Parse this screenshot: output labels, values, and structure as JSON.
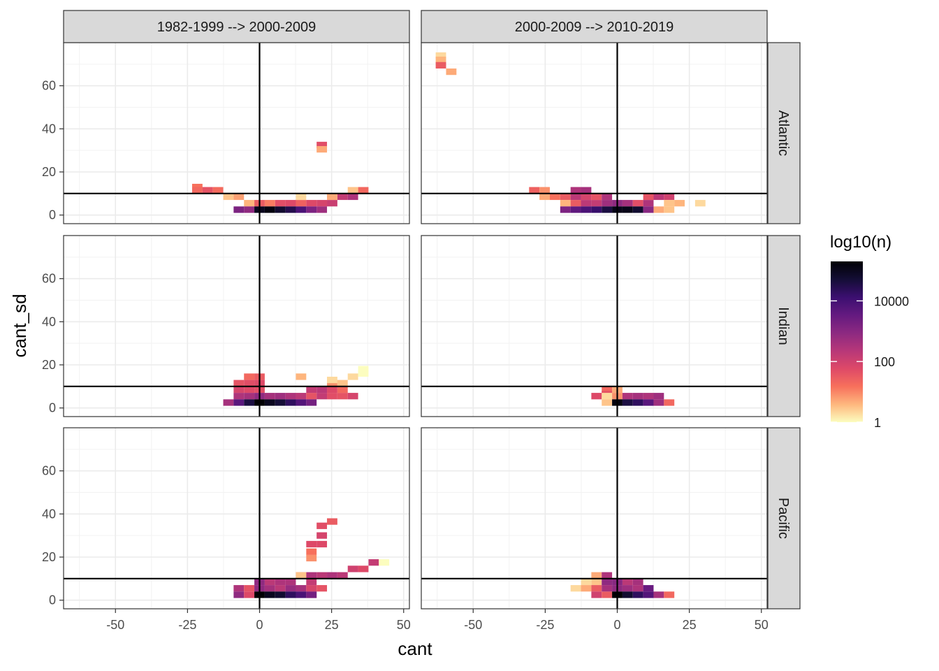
{
  "chart_data": {
    "type": "heatmap",
    "xlabel": "cant",
    "ylabel": "cant_sd",
    "xlim": [
      -68,
      52
    ],
    "ylim": [
      -4,
      80
    ],
    "x_ticks": [
      -50,
      -25,
      0,
      25,
      50
    ],
    "x_tick_labels": [
      "-50",
      "-25",
      "0",
      "25",
      "50"
    ],
    "y_ticks": [
      0,
      20,
      40,
      60
    ],
    "y_tick_labels": [
      "0",
      "20",
      "40",
      "60"
    ],
    "reference_lines": {
      "vline_x": 0,
      "hline_y": 10
    },
    "bin_size": {
      "x": 3.6,
      "y": 3.0
    },
    "grid": true,
    "column_facets": [
      "1982-1999 --> 2000-2009",
      "2000-2009 --> 2010-2019"
    ],
    "row_facets": [
      "Atlantic",
      "Indian",
      "Pacific"
    ],
    "legend": {
      "title": "log10(n)",
      "position": "right",
      "scale": "log10",
      "range": [
        1,
        200000
      ],
      "breaks": [
        1,
        100,
        10000
      ],
      "break_labels": [
        "1",
        "100",
        "10000"
      ],
      "colors": [
        "#fcfdbf",
        "#feb77e",
        "#f7705c",
        "#de4968",
        "#b73779",
        "#8c2981",
        "#641a80",
        "#3b0f70",
        "#140e36",
        "#000004"
      ]
    },
    "panels": [
      {
        "row": "Atlantic",
        "col": "1982-1999 --> 2000-2009",
        "cells": [
          [
            -21.6,
            13,
            15
          ],
          [
            -21.6,
            11.5,
            20
          ],
          [
            -18,
            11.5,
            40
          ],
          [
            -14.4,
            11.5,
            18
          ],
          [
            -10.8,
            8.5,
            3
          ],
          [
            -7.2,
            8.5,
            6
          ],
          [
            -3.6,
            5.5,
            4
          ],
          [
            0,
            5.5,
            30
          ],
          [
            3.6,
            5.5,
            12
          ],
          [
            7.2,
            5.5,
            50
          ],
          [
            10.8,
            5.5,
            60
          ],
          [
            14.4,
            5.5,
            25
          ],
          [
            18,
            5.5,
            60
          ],
          [
            21.6,
            5.5,
            80
          ],
          [
            25.2,
            5.5,
            120
          ],
          [
            28.8,
            8.5,
            150
          ],
          [
            32.4,
            8.5,
            300
          ],
          [
            36,
            11.5,
            20
          ],
          [
            32.4,
            11.5,
            3
          ],
          [
            25.2,
            8.5,
            5
          ],
          [
            14.4,
            8.5,
            2
          ],
          [
            -7.2,
            2.5,
            1500
          ],
          [
            -3.6,
            2.5,
            800
          ],
          [
            0,
            2.5,
            100000
          ],
          [
            3.6,
            2.5,
            150000
          ],
          [
            7.2,
            2.5,
            60000
          ],
          [
            10.8,
            2.5,
            30000
          ],
          [
            14.4,
            2.5,
            8000
          ],
          [
            18,
            2.5,
            1500
          ],
          [
            21.6,
            2.5,
            500
          ],
          [
            21.6,
            32.5,
            50
          ],
          [
            21.6,
            30.5,
            5
          ]
        ]
      },
      {
        "row": "Atlantic",
        "col": "2000-2009 --> 2010-2019",
        "cells": [
          [
            -61.2,
            74,
            2
          ],
          [
            -61.2,
            72,
            4
          ],
          [
            -61.2,
            69.5,
            30
          ],
          [
            -57.6,
            66.5,
            5
          ],
          [
            -28.8,
            11.5,
            25
          ],
          [
            -25.2,
            11.5,
            8
          ],
          [
            -25.2,
            8.5,
            5
          ],
          [
            -21.6,
            8.5,
            15
          ],
          [
            -18,
            8.5,
            30
          ],
          [
            -18,
            5.5,
            4
          ],
          [
            -14.4,
            11.5,
            300
          ],
          [
            -10.8,
            11.5,
            400
          ],
          [
            -14.4,
            8.5,
            200
          ],
          [
            -10.8,
            8.5,
            80
          ],
          [
            -7.2,
            8.5,
            40
          ],
          [
            -3.6,
            8.5,
            300
          ],
          [
            -14.4,
            5.5,
            30
          ],
          [
            -10.8,
            5.5,
            200
          ],
          [
            -7.2,
            5.5,
            150
          ],
          [
            -3.6,
            5.5,
            500
          ],
          [
            0,
            5.5,
            800
          ],
          [
            3.6,
            5.5,
            400
          ],
          [
            7.2,
            5.5,
            50
          ],
          [
            10.8,
            5.5,
            300
          ],
          [
            14.4,
            8.5,
            200
          ],
          [
            18,
            8.5,
            100
          ],
          [
            10.8,
            8.5,
            40
          ],
          [
            18,
            5.5,
            3
          ],
          [
            21.6,
            5.5,
            4
          ],
          [
            28.8,
            5.5,
            2
          ],
          [
            -18,
            2.5,
            1500
          ],
          [
            -14.4,
            2.5,
            4000
          ],
          [
            -10.8,
            2.5,
            8000
          ],
          [
            -7.2,
            2.5,
            15000
          ],
          [
            -3.6,
            2.5,
            40000
          ],
          [
            0,
            2.5,
            120000
          ],
          [
            3.6,
            2.5,
            120000
          ],
          [
            7.2,
            2.5,
            60000
          ],
          [
            10.8,
            2.5,
            1000
          ],
          [
            14.4,
            2.5,
            5
          ],
          [
            18,
            2.5,
            3
          ]
        ]
      },
      {
        "row": "Indian",
        "col": "1982-1999 --> 2000-2009",
        "cells": [
          [
            -3.6,
            14.5,
            20
          ],
          [
            0,
            14.5,
            30
          ],
          [
            -7.2,
            11.5,
            40
          ],
          [
            -3.6,
            11.5,
            50
          ],
          [
            0,
            11.5,
            60
          ],
          [
            -7.2,
            8.5,
            80
          ],
          [
            -3.6,
            8.5,
            60
          ],
          [
            0,
            8.5,
            50
          ],
          [
            -7.2,
            5.5,
            300
          ],
          [
            -3.6,
            5.5,
            400
          ],
          [
            0,
            5.5,
            800
          ],
          [
            3.6,
            5.5,
            400
          ],
          [
            7.2,
            5.5,
            500
          ],
          [
            10.8,
            5.5,
            300
          ],
          [
            14.4,
            5.5,
            200
          ],
          [
            18,
            5.5,
            40
          ],
          [
            21.6,
            5.5,
            150
          ],
          [
            25.2,
            5.5,
            50
          ],
          [
            28.8,
            5.5,
            40
          ],
          [
            32.4,
            5.5,
            80
          ],
          [
            18,
            8.5,
            150
          ],
          [
            21.6,
            8.5,
            200
          ],
          [
            25.2,
            8.5,
            60
          ],
          [
            28.8,
            8.5,
            20
          ],
          [
            25.2,
            11.5,
            8
          ],
          [
            28.8,
            11.5,
            3
          ],
          [
            32.4,
            14.5,
            2
          ],
          [
            36,
            16,
            1
          ],
          [
            36,
            18,
            1
          ],
          [
            14.4,
            14.5,
            4
          ],
          [
            25.2,
            13,
            2
          ],
          [
            -10.8,
            2.5,
            400
          ],
          [
            -7.2,
            2.5,
            5000
          ],
          [
            -3.6,
            2.5,
            40000
          ],
          [
            0,
            2.5,
            200000
          ],
          [
            3.6,
            2.5,
            100000
          ],
          [
            7.2,
            2.5,
            50000
          ],
          [
            10.8,
            2.5,
            20000
          ],
          [
            14.4,
            2.5,
            6000
          ],
          [
            18,
            2.5,
            2000
          ]
        ]
      },
      {
        "row": "Indian",
        "col": "2000-2009 --> 2010-2019",
        "cells": [
          [
            -3.6,
            8.5,
            20
          ],
          [
            0,
            8.5,
            5
          ],
          [
            -3.6,
            6.5,
            40
          ],
          [
            0,
            5.5,
            8
          ],
          [
            -7.2,
            5.5,
            60
          ],
          [
            -3.6,
            5.5,
            2
          ],
          [
            3.6,
            5.5,
            300
          ],
          [
            7.2,
            5.5,
            400
          ],
          [
            10.8,
            5.5,
            300
          ],
          [
            14.4,
            5.5,
            500
          ],
          [
            -3.6,
            2.5,
            3
          ],
          [
            0,
            2.5,
            150000
          ],
          [
            3.6,
            2.5,
            40000
          ],
          [
            7.2,
            2.5,
            20000
          ],
          [
            10.8,
            2.5,
            5000
          ],
          [
            14.4,
            2.5,
            500
          ],
          [
            18,
            2.5,
            20
          ]
        ]
      },
      {
        "row": "Pacific",
        "col": "1982-1999 --> 2000-2009",
        "cells": [
          [
            -7.2,
            5.5,
            300
          ],
          [
            -3.6,
            5.5,
            40
          ],
          [
            -7.2,
            2.5,
            800
          ],
          [
            -3.6,
            2.5,
            60
          ],
          [
            0,
            8.5,
            800
          ],
          [
            0,
            5.5,
            800
          ],
          [
            3.6,
            5.5,
            400
          ],
          [
            7.2,
            5.5,
            200
          ],
          [
            10.8,
            5.5,
            600
          ],
          [
            14.4,
            5.5,
            400
          ],
          [
            18,
            5.5,
            80
          ],
          [
            21.6,
            5.5,
            40
          ],
          [
            3.6,
            8.5,
            200
          ],
          [
            7.2,
            8.5,
            300
          ],
          [
            10.8,
            8.5,
            300
          ],
          [
            14.4,
            11.5,
            50
          ],
          [
            18,
            11.5,
            300
          ],
          [
            21.6,
            11.5,
            200
          ],
          [
            25.2,
            11.5,
            300
          ],
          [
            28.8,
            11.5,
            200
          ],
          [
            32.4,
            14.5,
            100
          ],
          [
            36,
            14.5,
            60
          ],
          [
            39.6,
            17.5,
            150
          ],
          [
            43.2,
            17.5,
            1
          ],
          [
            14.4,
            11.5,
            3
          ],
          [
            18,
            8.5,
            150
          ],
          [
            18,
            2.5,
            40
          ],
          [
            0,
            2.5,
            200000
          ],
          [
            3.6,
            2.5,
            100000
          ],
          [
            7.2,
            2.5,
            60000
          ],
          [
            10.8,
            2.5,
            20000
          ],
          [
            14.4,
            2.5,
            8000
          ],
          [
            18,
            2.5,
            2000
          ],
          [
            18,
            26,
            60
          ],
          [
            21.6,
            26,
            60
          ],
          [
            21.6,
            30,
            80
          ],
          [
            18,
            22.5,
            15
          ],
          [
            21.6,
            34.5,
            50
          ],
          [
            25.2,
            36.5,
            30
          ],
          [
            18,
            19.5,
            8
          ]
        ]
      },
      {
        "row": "Pacific",
        "col": "2000-2009 --> 2010-2019",
        "cells": [
          [
            -7.2,
            11.5,
            5
          ],
          [
            -3.6,
            11.5,
            300
          ],
          [
            -7.2,
            8.5,
            3
          ],
          [
            -10.8,
            8.5,
            2
          ],
          [
            -10.8,
            5.5,
            5
          ],
          [
            -7.2,
            5.5,
            30
          ],
          [
            -3.6,
            8.5,
            800
          ],
          [
            0,
            8.5,
            1000
          ],
          [
            3.6,
            8.5,
            200
          ],
          [
            7.2,
            8.5,
            400
          ],
          [
            -7.2,
            2.5,
            100
          ],
          [
            -3.6,
            2.5,
            30
          ],
          [
            -3.6,
            5.5,
            400
          ],
          [
            0,
            5.5,
            800
          ],
          [
            3.6,
            5.5,
            500
          ],
          [
            7.2,
            5.5,
            300
          ],
          [
            10.8,
            5.5,
            3000
          ],
          [
            -14.4,
            5.5,
            2
          ],
          [
            0,
            2.5,
            200000
          ],
          [
            3.6,
            2.5,
            60000
          ],
          [
            7.2,
            2.5,
            20000
          ],
          [
            10.8,
            2.5,
            6000
          ],
          [
            14.4,
            2.5,
            400
          ],
          [
            18,
            2.5,
            20
          ]
        ]
      }
    ]
  }
}
